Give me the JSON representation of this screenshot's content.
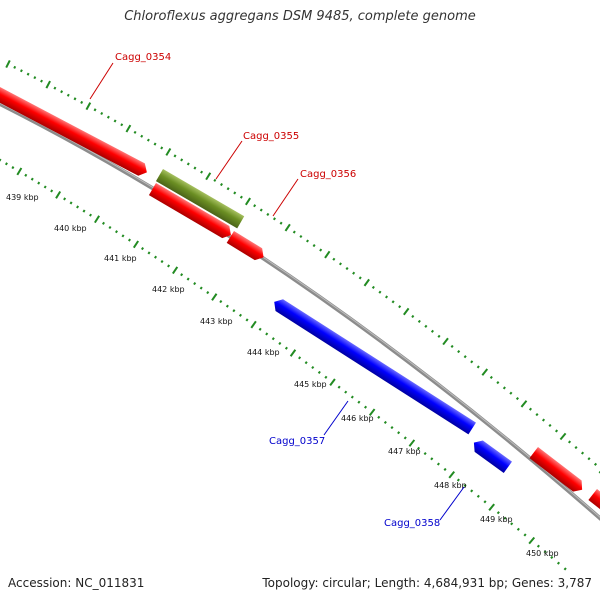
{
  "title": "Chloroflexus aggregans DSM 9485, complete genome",
  "footer": {
    "accession": "Accession: NC_011831",
    "summary": "Topology: circular; Length: 4,684,931 bp; Genes: 3,787"
  },
  "colors": {
    "forward_gene": "#ff0000",
    "reverse_gene": "#0000ff",
    "rna_gene": "#6b8e23",
    "backbone": "#8a8a8a",
    "ticks": "#228b22",
    "label_forward": "#cc0000",
    "label_reverse": "#0000cc"
  },
  "ruler": {
    "labels": [
      "439 kbp",
      "440 kbp",
      "441 kbp",
      "442 kbp",
      "443 kbp",
      "444 kbp",
      "445 kbp",
      "446 kbp",
      "447 kbp",
      "448 kbp",
      "449 kbp",
      "450 kbp"
    ]
  },
  "genes": [
    {
      "name": "Cagg_0354",
      "strand": "forward",
      "label_color": "label_forward"
    },
    {
      "name": "Cagg_0355",
      "strand": "forward",
      "label_color": "label_forward"
    },
    {
      "name": "Cagg_0356",
      "strand": "forward",
      "label_color": "label_forward"
    },
    {
      "name": "Cagg_0357",
      "strand": "reverse",
      "label_color": "label_reverse"
    },
    {
      "name": "Cagg_0358",
      "strand": "reverse",
      "label_color": "label_reverse"
    }
  ]
}
